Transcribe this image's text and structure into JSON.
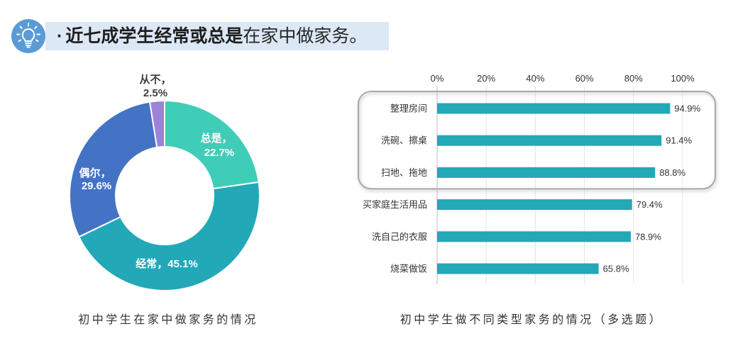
{
  "header": {
    "icon": "lightbulb-icon",
    "icon_color": "#5b9bd5",
    "banner_color": "#dce8f5",
    "bullet": "·",
    "title_bold": "近七成学生经常或总是",
    "title_regular": "在家中做家务。"
  },
  "chart_data": [
    {
      "type": "pie",
      "style": "donut",
      "categories": [
        "总是",
        "经常",
        "偶尔",
        "从不"
      ],
      "values": [
        22.7,
        45.1,
        29.6,
        2.5
      ],
      "label_separator": "，",
      "value_suffix": "%",
      "colors": [
        "#40cdb7",
        "#23a8b8",
        "#4472c4",
        "#9d82d9"
      ],
      "title": "初中学生在家中做家务的情况"
    },
    {
      "type": "bar",
      "orientation": "horizontal",
      "categories": [
        "整理房间",
        "洗碗、擦桌",
        "扫地、拖地",
        "买家庭生活用品",
        "洗自己的衣服",
        "烧菜做饭"
      ],
      "values": [
        94.9,
        91.4,
        88.8,
        79.4,
        78.9,
        65.8
      ],
      "value_suffix": "%",
      "xlim": [
        0,
        100
      ],
      "x_ticks": [
        0,
        20,
        40,
        60,
        80,
        100
      ],
      "x_axis_position": "top",
      "grid": true,
      "color": "#23a8b8",
      "highlighted": [
        true,
        true,
        true,
        false,
        false,
        false
      ],
      "title": "初中学生做不同类型家务的情况（多选题）"
    }
  ]
}
